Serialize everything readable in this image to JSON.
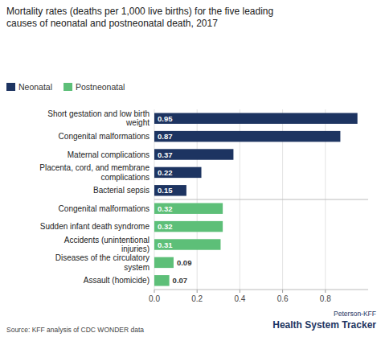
{
  "chart_data": {
    "type": "bar",
    "orientation": "horizontal",
    "title": "Mortality rates (deaths per 1,000 live births) for the five leading\ncauses of neonatal and postneonatal death, 2017",
    "categories": [
      "Short gestation and low birth\nweight",
      "Congenital malformations",
      "Maternal complications",
      "Placenta, cord, and membrane\ncomplications",
      "Bacterial sepsis",
      "Congenital malformations",
      "Sudden infant death syndrome",
      "Accidents (unintentional\ninjuries)",
      "Diseases of the circulatory\nsystem",
      "Assault (homicide)"
    ],
    "series": [
      {
        "name": "Neonatal",
        "color": "#1d3461",
        "values": [
          0.95,
          0.87,
          0.37,
          0.22,
          0.15,
          null,
          null,
          null,
          null,
          null
        ]
      },
      {
        "name": "Postneonatal",
        "color": "#5dbf78",
        "values": [
          null,
          null,
          null,
          null,
          null,
          0.32,
          0.32,
          0.31,
          0.09,
          0.07
        ]
      }
    ],
    "xlim": [
      0,
      1.0
    ],
    "xticks": [
      {
        "value": 0,
        "label": "0.0"
      },
      0.2,
      0.4,
      0.6,
      0.8
    ],
    "grid": true,
    "legend": "top",
    "data_labels": true,
    "source": "Source: KFF analysis of CDC WONDER data",
    "annotations": [
      "Peterson-KFF",
      "Health System Tracker"
    ]
  }
}
